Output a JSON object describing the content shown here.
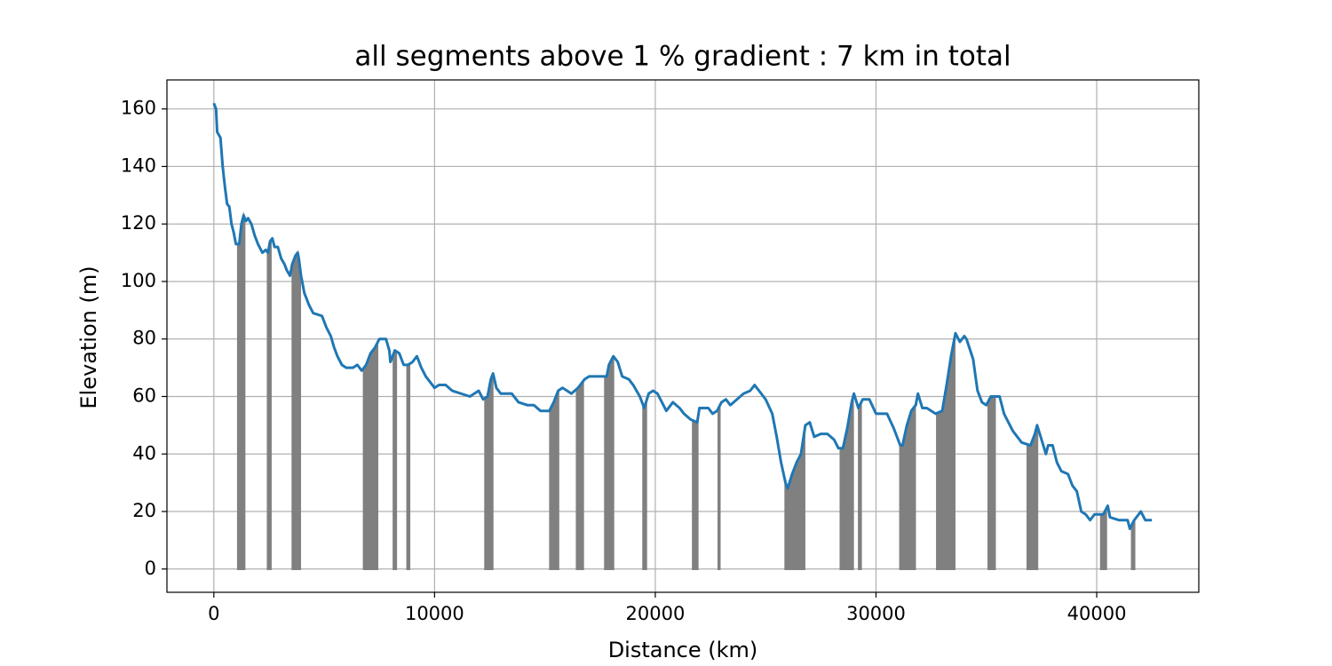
{
  "chart_data": {
    "type": "line",
    "title": "all segments above 1 % gradient : 7 km in total",
    "x_label": "Distance (km)",
    "y_label": "Elevation (m)",
    "x": [
      0,
      100,
      150,
      300,
      400,
      500,
      600,
      700,
      800,
      900,
      1000,
      1150,
      1250,
      1350,
      1450,
      1550,
      1700,
      1850,
      2000,
      2200,
      2350,
      2450,
      2550,
      2650,
      2750,
      2900,
      3050,
      3200,
      3300,
      3450,
      3550,
      3700,
      3800,
      3850,
      3950,
      4100,
      4300,
      4500,
      4900,
      5100,
      5300,
      5450,
      5600,
      5800,
      6000,
      6300,
      6500,
      6700,
      6900,
      7100,
      7300,
      7500,
      7800,
      7950,
      8000,
      8200,
      8400,
      8600,
      8800,
      9000,
      9200,
      9400,
      9600,
      9800,
      10000,
      10200,
      10500,
      10800,
      11200,
      11600,
      12000,
      12200,
      12400,
      12550,
      12650,
      12800,
      13000,
      13500,
      13800,
      14200,
      14500,
      14800,
      15200,
      15400,
      15600,
      15800,
      16000,
      16200,
      16500,
      16800,
      17000,
      17400,
      17800,
      17900,
      18100,
      18300,
      18500,
      18800,
      19000,
      19300,
      19500,
      19700,
      19900,
      20100,
      20300,
      20500,
      20800,
      21100,
      21300,
      21600,
      21900,
      22000,
      22400,
      22600,
      22800,
      23000,
      23200,
      23400,
      23700,
      24000,
      24300,
      24500,
      24700,
      25000,
      25300,
      25500,
      25700,
      25900,
      26000,
      26200,
      26400,
      26600,
      26800,
      27000,
      27200,
      27500,
      27800,
      28100,
      28300,
      28500,
      28700,
      28900,
      29000,
      29200,
      29400,
      29700,
      30000,
      30500,
      30800,
      31100,
      31200,
      31400,
      31600,
      31800,
      31900,
      32100,
      32300,
      32700,
      33000,
      33200,
      33400,
      33600,
      33800,
      34000,
      34100,
      34400,
      34600,
      34800,
      35000,
      35200,
      35600,
      35800,
      36200,
      36600,
      37000,
      37200,
      37300,
      37500,
      37700,
      37800,
      38000,
      38200,
      38400,
      38700,
      38900,
      39100,
      39300,
      39500,
      39700,
      39900,
      40300,
      40500,
      40600,
      41000,
      41400,
      41500,
      41700,
      42000,
      42200,
      42500
    ],
    "values": [
      162,
      160,
      152,
      150,
      140,
      133,
      127,
      126,
      120,
      117,
      113,
      113,
      120,
      123,
      121,
      122,
      120,
      116,
      113,
      110,
      111,
      110,
      114,
      115,
      112,
      112,
      108,
      106,
      104,
      102,
      106,
      109,
      110,
      108,
      102,
      96,
      92,
      89,
      88,
      84,
      81,
      77,
      74,
      71,
      70,
      70,
      71,
      69,
      71,
      75,
      77,
      80,
      80,
      76,
      72,
      76,
      75,
      71,
      71,
      72,
      74,
      70,
      67,
      65,
      63,
      64,
      64,
      62,
      61,
      60,
      62,
      59,
      60,
      66,
      68,
      63,
      61,
      61,
      58,
      57,
      57,
      55,
      55,
      58,
      62,
      63,
      62,
      61,
      63,
      66,
      67,
      67,
      67,
      71,
      74,
      72,
      67,
      66,
      64,
      60,
      56,
      61,
      62,
      61,
      58,
      55,
      58,
      56,
      54,
      52,
      51,
      56,
      56,
      54,
      55,
      58,
      59,
      57,
      59,
      61,
      62,
      64,
      62,
      59,
      54,
      46,
      37,
      30,
      28,
      33,
      37,
      40,
      50,
      51,
      46,
      47,
      47,
      45,
      42,
      42,
      49,
      58,
      61,
      56,
      59,
      59,
      54,
      54,
      49,
      43,
      43,
      50,
      55,
      57,
      61,
      56,
      56,
      54,
      55,
      64,
      74,
      82,
      79,
      81,
      80,
      73,
      62,
      58,
      57,
      60,
      60,
      54,
      48,
      44,
      43,
      47,
      50,
      45,
      40,
      43,
      43,
      37,
      34,
      33,
      29,
      27,
      20,
      19,
      17,
      19,
      19,
      22,
      18,
      17,
      17,
      14,
      17,
      20,
      17,
      17
    ],
    "color": "#1f77b4",
    "shaded_ranges": [
      [
        1100,
        1380
      ],
      [
        2450,
        2570
      ],
      [
        3570,
        3900
      ],
      [
        6800,
        7400
      ],
      [
        8150,
        8250
      ],
      [
        8770,
        8850
      ],
      [
        12300,
        12620
      ],
      [
        15240,
        15600
      ],
      [
        16450,
        16720
      ],
      [
        17730,
        18090
      ],
      [
        19460,
        19580
      ],
      [
        21710,
        21910
      ],
      [
        22870,
        22910
      ],
      [
        25900,
        26750
      ],
      [
        28400,
        28950
      ],
      [
        29230,
        29310
      ],
      [
        31100,
        31760
      ],
      [
        32770,
        33550
      ],
      [
        35100,
        35380
      ],
      [
        36870,
        37300
      ],
      [
        40200,
        40420
      ],
      [
        41600,
        41700
      ]
    ],
    "shade_color": "#808080",
    "xlim": [
      -2125,
      44625
    ],
    "ylim": [
      -8.1,
      170.1
    ],
    "xticks": [
      0,
      10000,
      20000,
      30000,
      40000
    ],
    "yticks": [
      0,
      20,
      40,
      60,
      80,
      100,
      120,
      140,
      160
    ],
    "grid": true
  }
}
